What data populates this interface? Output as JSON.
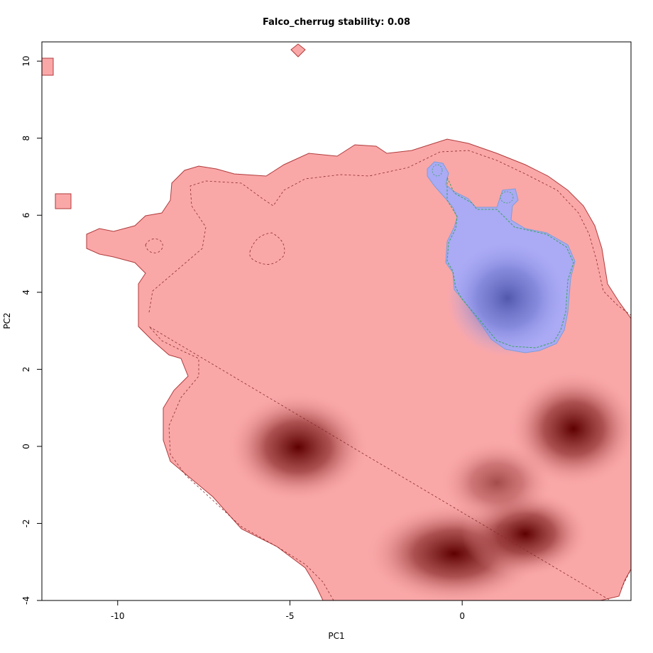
{
  "chart_data": {
    "type": "heatmap",
    "title": "Falco_cherrug stability: 0.08",
    "xlabel": "PC1",
    "ylabel": "PC2",
    "xlim": [
      -12.2,
      4.9
    ],
    "ylim": [
      -4.0,
      10.5
    ],
    "x_ticks": [
      -10,
      -5,
      0
    ],
    "x_tick_labels": [
      "-10",
      "-5",
      "0"
    ],
    "y_ticks": [
      -4,
      -2,
      0,
      2,
      4,
      6,
      8,
      10
    ],
    "y_tick_labels": [
      "-4",
      "-2",
      "0",
      "2",
      "4",
      "6",
      "8",
      "10"
    ],
    "grid": false,
    "legend": "none",
    "series": [
      {
        "role": "background climate space",
        "color": "#faa7a8",
        "density_peaks": [
          {
            "x": -4.6,
            "y": -0.1
          },
          {
            "x": 3.3,
            "y": 0.4
          },
          {
            "x": -0.2,
            "y": -2.8
          },
          {
            "x": 1.8,
            "y": -2.3
          }
        ],
        "peak_color": "#5e0000"
      },
      {
        "role": "species occurrence density",
        "color": "#aaaaf5",
        "density_peaks": [
          {
            "x": 1.5,
            "y": 3.6
          }
        ],
        "peak_color": "#5259ad"
      }
    ],
    "colors": {
      "background_fill": "#faa7a8",
      "background_outline": "#b03b3b",
      "species_fill": "#aaaaf5",
      "species_outline": "#7a9fd9",
      "species_contour": "#3aa35a"
    }
  }
}
